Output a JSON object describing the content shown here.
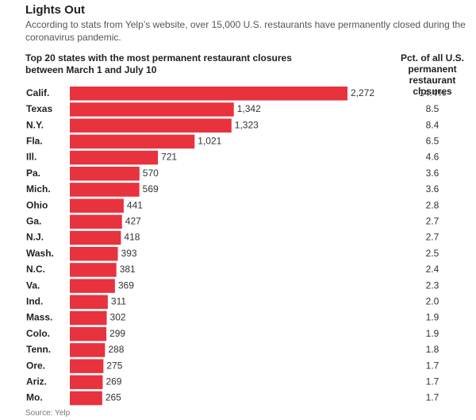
{
  "header": {
    "title": "Lights Out",
    "subtitle": "According to stats from Yelp’s website, over 15,000 U.S. restaurants have permanently closed during the coronavirus pandemic.",
    "chart_heading": "Top 20 states with the most permanent restaurant closures between March 1 and July 10",
    "pct_heading": "Pct. of all U.S. permanent restaurant closures"
  },
  "source": "Source: Yelp",
  "colors": {
    "bar": "#e8323e"
  },
  "chart_data": {
    "type": "bar",
    "orientation": "horizontal",
    "title": "Top 20 states with the most permanent restaurant closures between March 1 and July 10",
    "categories": [
      "Calif.",
      "Texas",
      "N.Y.",
      "Fla.",
      "Ill.",
      "Pa.",
      "Mich.",
      "Ohio",
      "Ga.",
      "N.J.",
      "Wash.",
      "N.C.",
      "Va.",
      "Ind.",
      "Mass.",
      "Colo.",
      "Tenn.",
      "Ore.",
      "Ariz.",
      "Mo."
    ],
    "values": [
      2272,
      1342,
      1323,
      1021,
      721,
      570,
      569,
      441,
      427,
      418,
      393,
      381,
      369,
      311,
      302,
      299,
      288,
      275,
      269,
      265
    ],
    "value_labels": [
      "2,272",
      "1,342",
      "1,323",
      "1,021",
      "721",
      "570",
      "569",
      "441",
      "427",
      "418",
      "393",
      "381",
      "369",
      "311",
      "302",
      "299",
      "288",
      "275",
      "269",
      "265"
    ],
    "pct_labels": [
      "14.4%",
      "8.5",
      "8.4",
      "6.5",
      "4.6",
      "3.6",
      "3.6",
      "2.8",
      "2.7",
      "2.7",
      "2.5",
      "2.4",
      "2.3",
      "2.0",
      "1.9",
      "1.9",
      "1.8",
      "1.7",
      "1.7",
      "1.7"
    ],
    "pct_values": [
      14.4,
      8.5,
      8.4,
      6.5,
      4.6,
      3.6,
      3.6,
      2.8,
      2.7,
      2.7,
      2.5,
      2.4,
      2.3,
      2.0,
      1.9,
      1.9,
      1.8,
      1.7,
      1.7,
      1.7
    ],
    "grid": false,
    "legend": "none"
  }
}
